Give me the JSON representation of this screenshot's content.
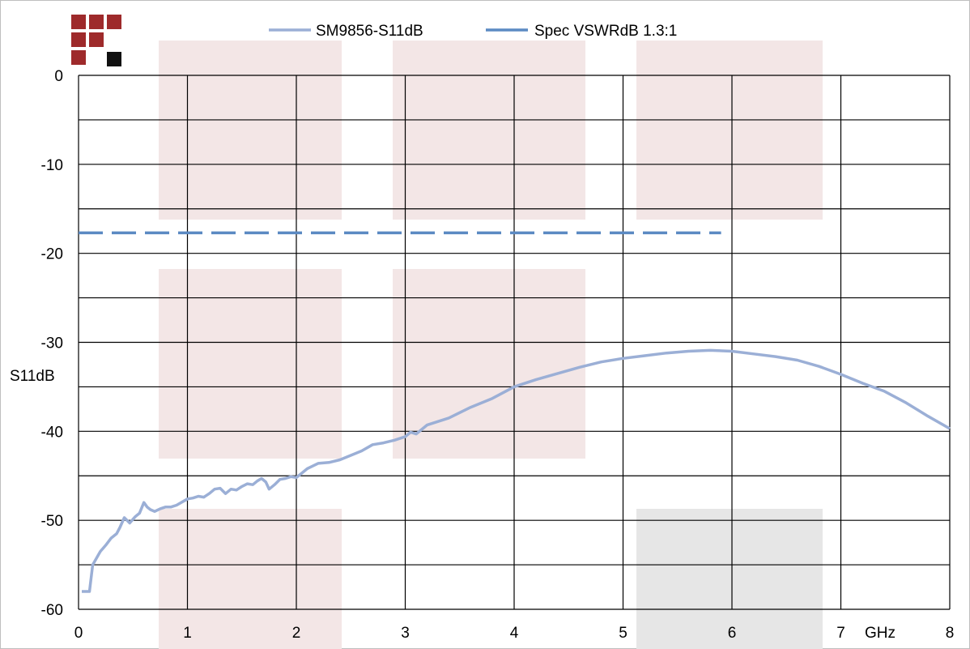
{
  "chart_data": {
    "type": "line",
    "title": "",
    "xlabel": "GHz",
    "ylabel": "S11dB",
    "xlim": [
      0,
      8
    ],
    "ylim": [
      -60,
      0
    ],
    "x_ticks": [
      "0",
      "1",
      "2",
      "3",
      "4",
      "5",
      "6",
      "7",
      "8"
    ],
    "y_ticks": [
      "0",
      "-10",
      "-20",
      "-30",
      "-40",
      "-50",
      "-60"
    ],
    "grid": true,
    "legend_position": "top",
    "series": [
      {
        "name": "SM9856-S11dB",
        "color": "#9bafd6",
        "style": "solid",
        "x": [
          0.03,
          0.1,
          0.13,
          0.2,
          0.25,
          0.3,
          0.35,
          0.38,
          0.42,
          0.47,
          0.52,
          0.56,
          0.6,
          0.63,
          0.66,
          0.7,
          0.75,
          0.8,
          0.85,
          0.9,
          1.0,
          1.05,
          1.1,
          1.15,
          1.2,
          1.25,
          1.3,
          1.35,
          1.4,
          1.45,
          1.5,
          1.55,
          1.6,
          1.64,
          1.68,
          1.72,
          1.75,
          1.8,
          1.85,
          1.9,
          1.95,
          2.0,
          2.05,
          2.1,
          2.2,
          2.3,
          2.4,
          2.5,
          2.6,
          2.7,
          2.8,
          2.9,
          3.0,
          3.05,
          3.1,
          3.2,
          3.4,
          3.6,
          3.8,
          4.0,
          4.2,
          4.4,
          4.6,
          4.8,
          5.0,
          5.2,
          5.4,
          5.6,
          5.8,
          6.0,
          6.2,
          6.4,
          6.6,
          6.8,
          7.0,
          7.2,
          7.4,
          7.6,
          7.8,
          8.0
        ],
        "values": [
          -58.0,
          -58.0,
          -55.0,
          -53.5,
          -52.8,
          -52.0,
          -51.5,
          -50.8,
          -49.7,
          -50.3,
          -49.6,
          -49.2,
          -48.0,
          -48.5,
          -48.8,
          -49.0,
          -48.7,
          -48.5,
          -48.5,
          -48.3,
          -47.6,
          -47.5,
          -47.3,
          -47.4,
          -47.0,
          -46.5,
          -46.4,
          -47.0,
          -46.5,
          -46.6,
          -46.2,
          -45.9,
          -46.0,
          -45.6,
          -45.3,
          -45.7,
          -46.5,
          -46.0,
          -45.4,
          -45.3,
          -45.1,
          -45.2,
          -44.7,
          -44.2,
          -43.6,
          -43.5,
          -43.2,
          -42.7,
          -42.2,
          -41.5,
          -41.3,
          -41.0,
          -40.6,
          -40.1,
          -40.3,
          -39.3,
          -38.5,
          -37.3,
          -36.3,
          -35.0,
          -34.2,
          -33.5,
          -32.8,
          -32.2,
          -31.8,
          -31.5,
          -31.2,
          -31.0,
          -30.9,
          -31.0,
          -31.3,
          -31.6,
          -32.0,
          -32.7,
          -33.6,
          -34.6,
          -35.5,
          -36.8,
          -38.3,
          -39.7
        ]
      },
      {
        "name": "Spec VSWRdB 1.3:1",
        "color": "#5b8ac3",
        "style": "dashed",
        "x": [
          0,
          5.9
        ],
        "values": [
          -17.7,
          -17.7
        ]
      }
    ]
  }
}
